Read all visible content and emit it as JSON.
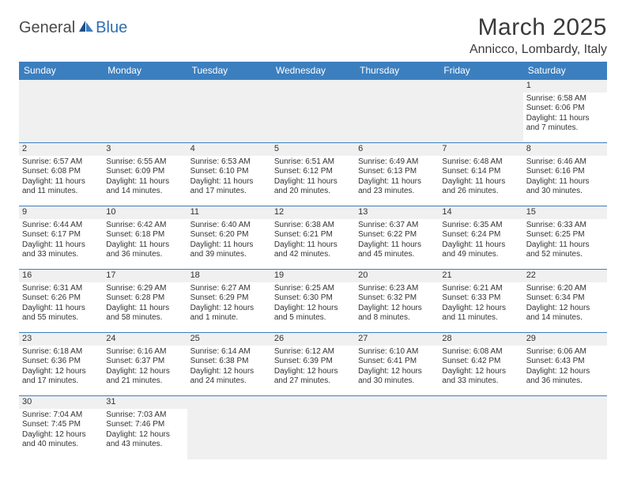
{
  "brand": {
    "part1": "General",
    "part2": "Blue"
  },
  "title": "March 2025",
  "location": "Annicco, Lombardy, Italy",
  "colors": {
    "header_bg": "#3c7fbf",
    "header_text": "#ffffff",
    "cell_border": "#3c7fbf",
    "daynum_bg": "#f0f0f0",
    "empty_bg": "#f0f0f0",
    "page_bg": "#ffffff",
    "text": "#333333",
    "title_text": "#3a3a3a",
    "logo_gray": "#4a4a4a",
    "logo_blue": "#2f6fb0"
  },
  "typography": {
    "title_fontsize": 30,
    "location_fontsize": 16,
    "dayheader_fontsize": 12,
    "cell_fontsize": 10,
    "daynum_fontsize": 11
  },
  "day_headers": [
    "Sunday",
    "Monday",
    "Tuesday",
    "Wednesday",
    "Thursday",
    "Friday",
    "Saturday"
  ],
  "weeks": [
    [
      null,
      null,
      null,
      null,
      null,
      null,
      {
        "n": "1",
        "sunrise": "Sunrise: 6:58 AM",
        "sunset": "Sunset: 6:06 PM",
        "day1": "Daylight: 11 hours",
        "day2": "and 7 minutes."
      }
    ],
    [
      {
        "n": "2",
        "sunrise": "Sunrise: 6:57 AM",
        "sunset": "Sunset: 6:08 PM",
        "day1": "Daylight: 11 hours",
        "day2": "and 11 minutes."
      },
      {
        "n": "3",
        "sunrise": "Sunrise: 6:55 AM",
        "sunset": "Sunset: 6:09 PM",
        "day1": "Daylight: 11 hours",
        "day2": "and 14 minutes."
      },
      {
        "n": "4",
        "sunrise": "Sunrise: 6:53 AM",
        "sunset": "Sunset: 6:10 PM",
        "day1": "Daylight: 11 hours",
        "day2": "and 17 minutes."
      },
      {
        "n": "5",
        "sunrise": "Sunrise: 6:51 AM",
        "sunset": "Sunset: 6:12 PM",
        "day1": "Daylight: 11 hours",
        "day2": "and 20 minutes."
      },
      {
        "n": "6",
        "sunrise": "Sunrise: 6:49 AM",
        "sunset": "Sunset: 6:13 PM",
        "day1": "Daylight: 11 hours",
        "day2": "and 23 minutes."
      },
      {
        "n": "7",
        "sunrise": "Sunrise: 6:48 AM",
        "sunset": "Sunset: 6:14 PM",
        "day1": "Daylight: 11 hours",
        "day2": "and 26 minutes."
      },
      {
        "n": "8",
        "sunrise": "Sunrise: 6:46 AM",
        "sunset": "Sunset: 6:16 PM",
        "day1": "Daylight: 11 hours",
        "day2": "and 30 minutes."
      }
    ],
    [
      {
        "n": "9",
        "sunrise": "Sunrise: 6:44 AM",
        "sunset": "Sunset: 6:17 PM",
        "day1": "Daylight: 11 hours",
        "day2": "and 33 minutes."
      },
      {
        "n": "10",
        "sunrise": "Sunrise: 6:42 AM",
        "sunset": "Sunset: 6:18 PM",
        "day1": "Daylight: 11 hours",
        "day2": "and 36 minutes."
      },
      {
        "n": "11",
        "sunrise": "Sunrise: 6:40 AM",
        "sunset": "Sunset: 6:20 PM",
        "day1": "Daylight: 11 hours",
        "day2": "and 39 minutes."
      },
      {
        "n": "12",
        "sunrise": "Sunrise: 6:38 AM",
        "sunset": "Sunset: 6:21 PM",
        "day1": "Daylight: 11 hours",
        "day2": "and 42 minutes."
      },
      {
        "n": "13",
        "sunrise": "Sunrise: 6:37 AM",
        "sunset": "Sunset: 6:22 PM",
        "day1": "Daylight: 11 hours",
        "day2": "and 45 minutes."
      },
      {
        "n": "14",
        "sunrise": "Sunrise: 6:35 AM",
        "sunset": "Sunset: 6:24 PM",
        "day1": "Daylight: 11 hours",
        "day2": "and 49 minutes."
      },
      {
        "n": "15",
        "sunrise": "Sunrise: 6:33 AM",
        "sunset": "Sunset: 6:25 PM",
        "day1": "Daylight: 11 hours",
        "day2": "and 52 minutes."
      }
    ],
    [
      {
        "n": "16",
        "sunrise": "Sunrise: 6:31 AM",
        "sunset": "Sunset: 6:26 PM",
        "day1": "Daylight: 11 hours",
        "day2": "and 55 minutes."
      },
      {
        "n": "17",
        "sunrise": "Sunrise: 6:29 AM",
        "sunset": "Sunset: 6:28 PM",
        "day1": "Daylight: 11 hours",
        "day2": "and 58 minutes."
      },
      {
        "n": "18",
        "sunrise": "Sunrise: 6:27 AM",
        "sunset": "Sunset: 6:29 PM",
        "day1": "Daylight: 12 hours",
        "day2": "and 1 minute."
      },
      {
        "n": "19",
        "sunrise": "Sunrise: 6:25 AM",
        "sunset": "Sunset: 6:30 PM",
        "day1": "Daylight: 12 hours",
        "day2": "and 5 minutes."
      },
      {
        "n": "20",
        "sunrise": "Sunrise: 6:23 AM",
        "sunset": "Sunset: 6:32 PM",
        "day1": "Daylight: 12 hours",
        "day2": "and 8 minutes."
      },
      {
        "n": "21",
        "sunrise": "Sunrise: 6:21 AM",
        "sunset": "Sunset: 6:33 PM",
        "day1": "Daylight: 12 hours",
        "day2": "and 11 minutes."
      },
      {
        "n": "22",
        "sunrise": "Sunrise: 6:20 AM",
        "sunset": "Sunset: 6:34 PM",
        "day1": "Daylight: 12 hours",
        "day2": "and 14 minutes."
      }
    ],
    [
      {
        "n": "23",
        "sunrise": "Sunrise: 6:18 AM",
        "sunset": "Sunset: 6:36 PM",
        "day1": "Daylight: 12 hours",
        "day2": "and 17 minutes."
      },
      {
        "n": "24",
        "sunrise": "Sunrise: 6:16 AM",
        "sunset": "Sunset: 6:37 PM",
        "day1": "Daylight: 12 hours",
        "day2": "and 21 minutes."
      },
      {
        "n": "25",
        "sunrise": "Sunrise: 6:14 AM",
        "sunset": "Sunset: 6:38 PM",
        "day1": "Daylight: 12 hours",
        "day2": "and 24 minutes."
      },
      {
        "n": "26",
        "sunrise": "Sunrise: 6:12 AM",
        "sunset": "Sunset: 6:39 PM",
        "day1": "Daylight: 12 hours",
        "day2": "and 27 minutes."
      },
      {
        "n": "27",
        "sunrise": "Sunrise: 6:10 AM",
        "sunset": "Sunset: 6:41 PM",
        "day1": "Daylight: 12 hours",
        "day2": "and 30 minutes."
      },
      {
        "n": "28",
        "sunrise": "Sunrise: 6:08 AM",
        "sunset": "Sunset: 6:42 PM",
        "day1": "Daylight: 12 hours",
        "day2": "and 33 minutes."
      },
      {
        "n": "29",
        "sunrise": "Sunrise: 6:06 AM",
        "sunset": "Sunset: 6:43 PM",
        "day1": "Daylight: 12 hours",
        "day2": "and 36 minutes."
      }
    ],
    [
      {
        "n": "30",
        "sunrise": "Sunrise: 7:04 AM",
        "sunset": "Sunset: 7:45 PM",
        "day1": "Daylight: 12 hours",
        "day2": "and 40 minutes."
      },
      {
        "n": "31",
        "sunrise": "Sunrise: 7:03 AM",
        "sunset": "Sunset: 7:46 PM",
        "day1": "Daylight: 12 hours",
        "day2": "and 43 minutes."
      },
      null,
      null,
      null,
      null,
      null
    ]
  ]
}
